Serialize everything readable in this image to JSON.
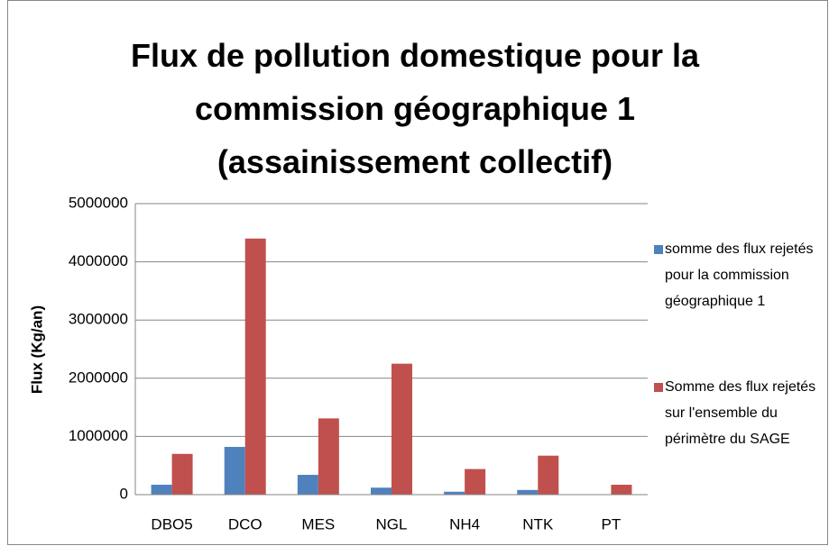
{
  "chart_data": {
    "type": "bar",
    "title": "Flux de pollution domestique pour la commission géographique 1 (assainissement collectif)",
    "y_label": "Flux (Kg/an)",
    "categories": [
      "DBO5",
      "DCO",
      "MES",
      "NGL",
      "NH4",
      "NTK",
      "PT"
    ],
    "series": [
      {
        "name": "somme des flux rejetés pour la commission géographique 1",
        "color": "#4f81bd",
        "values": [
          170000,
          820000,
          340000,
          120000,
          50000,
          80000,
          5000
        ]
      },
      {
        "name": "Somme des flux rejetés sur l'ensemble du périmètre du SAGE",
        "color": "#c0504d",
        "values": [
          700000,
          4400000,
          1310000,
          2250000,
          440000,
          670000,
          170000
        ]
      }
    ],
    "ylim": [
      0,
      5000000
    ],
    "yticks": [
      0,
      1000000,
      2000000,
      3000000,
      4000000,
      5000000
    ],
    "grid": true,
    "legend": "right"
  }
}
